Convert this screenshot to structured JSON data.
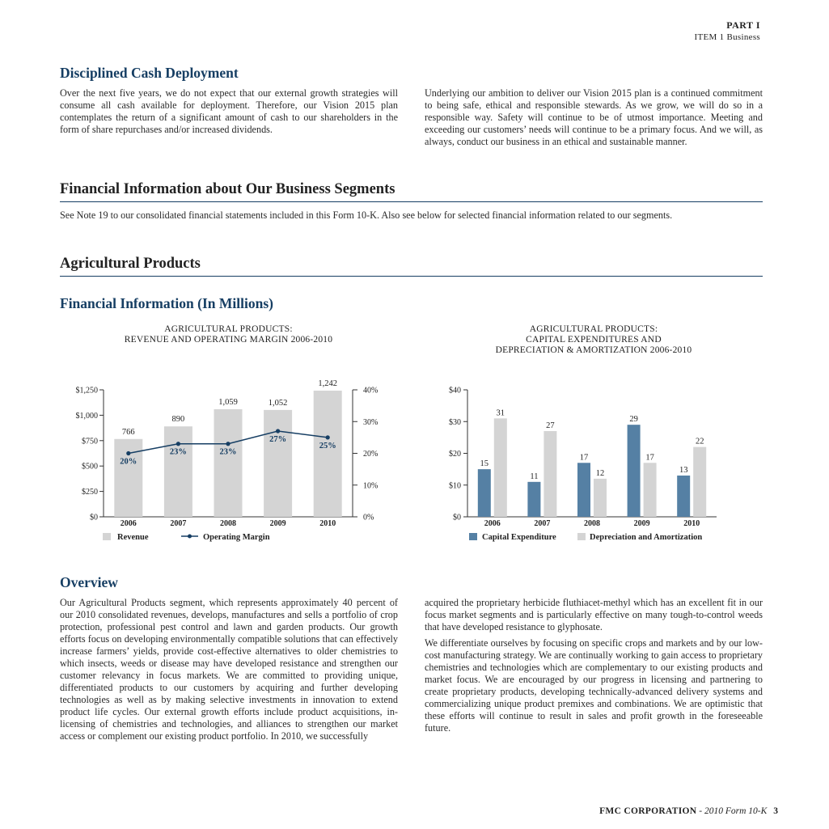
{
  "header": {
    "part": "PART I",
    "item": "ITEM 1 Business"
  },
  "cash": {
    "heading": "Disciplined Cash Deployment",
    "col1": "Over the next five years, we do not expect that our external growth strategies will consume all cash available for deployment. Therefore, our Vision 2015 plan contemplates the return of a significant amount of cash to our shareholders in the form of share repurchases and/or increased dividends.",
    "col2": "Underlying our ambition to deliver our Vision 2015 plan is a continued commitment to being safe, ethical and responsible stewards. As we grow, we will do so in a responsible way. Safety will continue to be of utmost importance. Meeting and exceeding our customers’ needs will continue to be a primary focus. And we will, as always, conduct our business in an ethical and sustainable manner."
  },
  "segments": {
    "heading": "Financial Information about Our Business Segments",
    "text": "See Note 19 to our consolidated financial statements included in this Form 10-K. Also see below for selected financial information related to our segments."
  },
  "ag": {
    "heading": "Agricultural Products"
  },
  "fin": {
    "heading": "Financial Information (In Millions)"
  },
  "chart_data": [
    {
      "type": "bar",
      "title": "AGRICULTURAL PRODUCTS:\nREVENUE AND OPERATING MARGIN 2006-2010",
      "title_lines": [
        "AGRICULTURAL PRODUCTS:",
        "REVENUE AND OPERATING MARGIN 2006-2010"
      ],
      "categories": [
        "2006",
        "2007",
        "2008",
        "2009",
        "2010"
      ],
      "series": [
        {
          "name": "Revenue",
          "type": "bar",
          "axis": "left",
          "values": [
            766,
            890,
            1059,
            1052,
            1242
          ],
          "labels": [
            "766",
            "890",
            "1,059",
            "1,052",
            "1,242"
          ],
          "color": "#d4d4d4"
        },
        {
          "name": "Operating Margin",
          "type": "line",
          "axis": "right",
          "values": [
            20,
            23,
            23,
            27,
            25
          ],
          "labels": [
            "20%",
            "23%",
            "23%",
            "27%",
            "25%"
          ],
          "color": "#163e63"
        }
      ],
      "ylim": [
        0,
        1250
      ],
      "yticks": [
        "$0",
        "$250",
        "$500",
        "$750",
        "$1,000",
        "$1,250"
      ],
      "y2lim": [
        0,
        40
      ],
      "y2ticks": [
        "0%",
        "10%",
        "20%",
        "30%",
        "40%"
      ],
      "legend": "bottom",
      "grid": false
    },
    {
      "type": "bar",
      "title": "AGRICULTURAL PRODUCTS:\nCAPITAL EXPENDITURES AND\nDEPRECIATION & AMORTIZATION 2006-2010",
      "title_lines": [
        "AGRICULTURAL PRODUCTS:",
        "CAPITAL EXPENDITURES AND",
        "DEPRECIATION & AMORTIZATION 2006-2010"
      ],
      "categories": [
        "2006",
        "2007",
        "2008",
        "2009",
        "2010"
      ],
      "series": [
        {
          "name": "Capital Expenditure",
          "values": [
            15,
            11,
            17,
            29,
            13
          ],
          "color": "#5580a4"
        },
        {
          "name": "Depreciation and Amortization",
          "values": [
            31,
            27,
            12,
            17,
            22
          ],
          "color": "#d4d4d4"
        }
      ],
      "ylim": [
        0,
        40
      ],
      "yticks": [
        "$0",
        "$10",
        "$20",
        "$30",
        "$40"
      ],
      "legend": "bottom",
      "grid": false
    }
  ],
  "overview": {
    "heading": "Overview",
    "col1": "Our Agricultural Products segment, which represents approximately 40 percent of our 2010 consolidated revenues, develops, manufactures and sells a portfolio of crop protection, professional pest control and lawn and garden products. Our growth efforts focus on developing environmentally compatible solutions that can effectively increase farmers’ yields, provide cost-effective alternatives to older chemistries to which insects, weeds or disease may have developed resistance and strengthen our customer relevancy in focus markets. We are committed to providing unique, differentiated products to our customers by acquiring and further developing technologies as well as by making selective investments in innovation to extend product life cycles. Our external growth efforts include product acquisitions, in-licensing of chemistries and technologies, and alliances to strengthen our market access or complement our existing product portfolio. In 2010, we successfully",
    "col2a": "acquired the proprietary herbicide fluthiacet-methyl which has an excellent fit in our focus market segments and is particularly effective on many tough-to-control weeds that have developed resistance to glyphosate.",
    "col2b": "We differentiate ourselves by focusing on specific crops and markets and by our low-cost manufacturing strategy. We are continually working to gain access to proprietary chemistries and technologies which are complementary to our existing products and market focus. We are encouraged by our progress in licensing and partnering to create proprietary products, developing technically-advanced delivery systems and commercializing unique product premixes and combinations. We are optimistic that these efforts will continue to result in sales and profit growth in the foreseeable future."
  },
  "footer": {
    "company": "FMC CORPORATION",
    "sep": " - ",
    "form": "2010 Form 10-K",
    "page": "3"
  }
}
